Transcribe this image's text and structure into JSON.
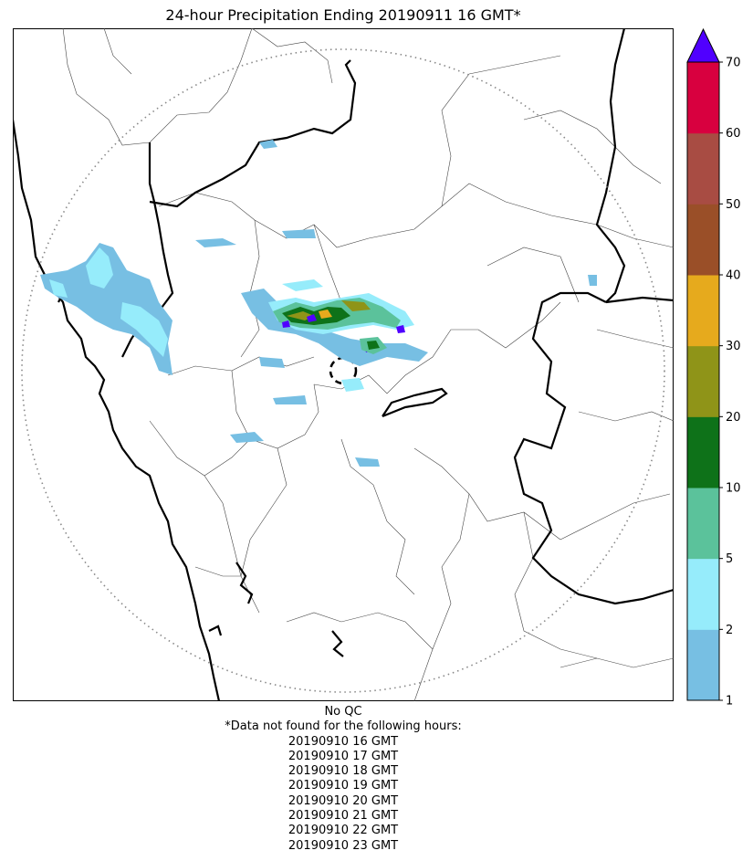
{
  "title": "24-hour Precipitation Ending 20190911 16 GMT*",
  "qc_label": "No QC",
  "missing_note": "*Data not found for the following hours:",
  "missing_hours": [
    "20190910 16 GMT",
    "20190910 17 GMT",
    "20190910 18 GMT",
    "20190910 19 GMT",
    "20190910 20 GMT",
    "20190910 21 GMT",
    "20190910 22 GMT",
    "20190910 23 GMT"
  ],
  "colorbar": {
    "ticks": [
      "1",
      "2",
      "5",
      "10",
      "20",
      "30",
      "40",
      "50",
      "60",
      "70"
    ],
    "colors": [
      "#77bfe3",
      "#96ecfb",
      "#5bc29b",
      "#0e7219",
      "#8f9418",
      "#e6aa1d",
      "#9a4f28",
      "#a84c43",
      "#d8003f"
    ],
    "over_color": "#5000ff"
  },
  "rain_colors": {
    "light": "#77bfe3",
    "medium": "#96ecfb",
    "moderate": "#5bc29b",
    "heavy": "#0e7219",
    "very_heavy": "#8f9418",
    "extreme": "#e6aa1d",
    "max": "#5000ff"
  }
}
